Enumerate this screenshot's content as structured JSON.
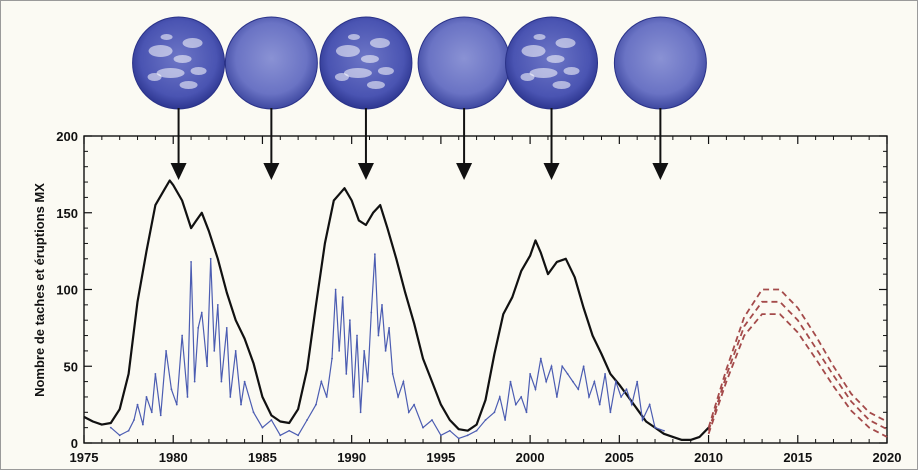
{
  "chart_data": {
    "type": "line",
    "title": "",
    "xlabel": "",
    "ylabel": "Nombre de taches et éruptions MX",
    "xlim": [
      1975,
      2020
    ],
    "ylim": [
      0,
      200
    ],
    "xticks": [
      1975,
      1980,
      1985,
      1990,
      1995,
      2000,
      2005,
      2010,
      2015,
      2020
    ],
    "yticks": [
      0,
      50,
      100,
      150,
      200
    ],
    "grid": false,
    "legend": "none",
    "series": [
      {
        "kind": "sunspot-number",
        "color": "#111111",
        "x": [
          1975.0,
          1975.5,
          1976.0,
          1976.5,
          1977.0,
          1977.5,
          1978.0,
          1978.5,
          1979.0,
          1979.5,
          1979.8,
          1980.0,
          1980.5,
          1981.0,
          1981.3,
          1981.6,
          1982.0,
          1982.5,
          1983.0,
          1983.5,
          1984.0,
          1984.5,
          1985.0,
          1985.5,
          1986.0,
          1986.5,
          1987.0,
          1987.5,
          1988.0,
          1988.5,
          1989.0,
          1989.3,
          1989.6,
          1990.0,
          1990.4,
          1990.8,
          1991.2,
          1991.6,
          1992.0,
          1992.5,
          1993.0,
          1993.5,
          1994.0,
          1994.5,
          1995.0,
          1995.5,
          1996.0,
          1996.5,
          1997.0,
          1997.5,
          1998.0,
          1998.5,
          1999.0,
          1999.5,
          2000.0,
          2000.3,
          2000.6,
          2001.0,
          2001.5,
          2002.0,
          2002.5,
          2003.0,
          2003.5,
          2004.0,
          2004.5,
          2005.0,
          2005.5,
          2006.0,
          2006.5,
          2007.0,
          2007.5,
          2008.0,
          2008.5,
          2009.0,
          2009.5,
          2010.0
        ],
        "y": [
          17,
          14,
          12,
          13,
          22,
          45,
          92,
          125,
          155,
          165,
          171,
          168,
          158,
          140,
          145,
          150,
          138,
          120,
          98,
          80,
          68,
          52,
          30,
          18,
          14,
          13,
          22,
          48,
          90,
          130,
          158,
          162,
          166,
          158,
          145,
          142,
          150,
          155,
          140,
          120,
          98,
          78,
          55,
          40,
          25,
          15,
          9,
          8,
          12,
          28,
          58,
          84,
          95,
          112,
          122,
          132,
          124,
          110,
          118,
          120,
          108,
          88,
          70,
          58,
          45,
          38,
          30,
          22,
          14,
          10,
          6,
          4,
          2,
          2,
          4,
          10
        ]
      },
      {
        "kind": "mx-flares",
        "color": "#4c5db2",
        "x": [
          1976.5,
          1977.0,
          1977.5,
          1977.8,
          1978.0,
          1978.3,
          1978.5,
          1978.8,
          1979.0,
          1979.3,
          1979.6,
          1979.9,
          1980.2,
          1980.5,
          1980.8,
          1981.0,
          1981.2,
          1981.4,
          1981.6,
          1981.9,
          1982.1,
          1982.3,
          1982.5,
          1982.7,
          1983.0,
          1983.2,
          1983.5,
          1983.8,
          1984.0,
          1984.5,
          1985.0,
          1985.5,
          1986.0,
          1986.5,
          1987.0,
          1987.5,
          1988.0,
          1988.3,
          1988.6,
          1988.9,
          1989.1,
          1989.3,
          1989.5,
          1989.7,
          1989.9,
          1990.1,
          1990.3,
          1990.5,
          1990.7,
          1990.9,
          1991.1,
          1991.3,
          1991.5,
          1991.7,
          1991.9,
          1992.1,
          1992.3,
          1992.6,
          1992.9,
          1993.2,
          1993.5,
          1994.0,
          1994.5,
          1995.0,
          1995.5,
          1996.0,
          1996.5,
          1997.0,
          1997.5,
          1998.0,
          1998.3,
          1998.6,
          1998.9,
          1999.2,
          1999.5,
          1999.8,
          2000.0,
          2000.3,
          2000.6,
          2000.9,
          2001.2,
          2001.5,
          2001.8,
          2002.1,
          2002.4,
          2002.7,
          2003.0,
          2003.3,
          2003.6,
          2003.9,
          2004.2,
          2004.5,
          2004.8,
          2005.1,
          2005.4,
          2005.7,
          2006.0,
          2006.3,
          2006.7,
          2007.0,
          2007.5
        ],
        "y": [
          10,
          5,
          8,
          15,
          25,
          12,
          30,
          20,
          45,
          18,
          60,
          35,
          25,
          70,
          30,
          118,
          40,
          75,
          85,
          50,
          120,
          60,
          90,
          40,
          75,
          30,
          60,
          25,
          40,
          20,
          10,
          15,
          5,
          8,
          5,
          15,
          25,
          40,
          30,
          55,
          100,
          60,
          95,
          45,
          80,
          30,
          70,
          20,
          60,
          40,
          85,
          123,
          70,
          90,
          60,
          75,
          45,
          30,
          40,
          20,
          25,
          10,
          15,
          5,
          8,
          3,
          5,
          8,
          15,
          20,
          30,
          15,
          40,
          25,
          30,
          20,
          45,
          35,
          55,
          40,
          50,
          30,
          50,
          45,
          40,
          35,
          50,
          30,
          40,
          25,
          45,
          20,
          40,
          30,
          35,
          25,
          40,
          15,
          25,
          10,
          8
        ]
      },
      {
        "kind": "prediction",
        "color": "#a44a4a",
        "dash": "6,4",
        "x": [
          2010,
          2011,
          2012,
          2013,
          2014,
          2015,
          2016,
          2017,
          2018,
          2019,
          2020
        ],
        "lines": [
          [
            10,
            48,
            82,
            100,
            100,
            88,
            70,
            50,
            32,
            20,
            14
          ],
          [
            8,
            44,
            76,
            92,
            92,
            80,
            62,
            44,
            27,
            15,
            9
          ],
          [
            6,
            40,
            70,
            84,
            84,
            72,
            55,
            37,
            21,
            10,
            4
          ]
        ]
      }
    ],
    "annotations": {
      "arrow_years": [
        1980.3,
        1985.5,
        1990.8,
        1996.3,
        2001.2,
        2007.3
      ],
      "sun_discs": [
        "active",
        "quiet",
        "active",
        "quiet",
        "active",
        "quiet"
      ]
    }
  }
}
